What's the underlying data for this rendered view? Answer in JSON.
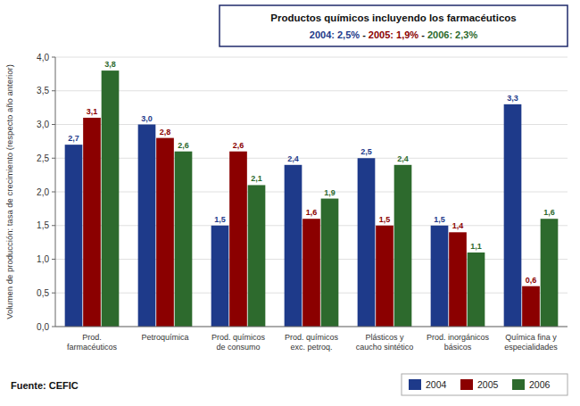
{
  "chart_data": {
    "type": "bar",
    "title": "Productos químicos incluyendo los farmacéuticos",
    "subtitle": [
      {
        "text": "2004: 2,5%",
        "color": "#1e3a8a"
      },
      {
        "text": " - "
      },
      {
        "text": "2005: 1,9%",
        "color": "#8b0000"
      },
      {
        "text": " - "
      },
      {
        "text": "2006: 2,3%",
        "color": "#2d6a2d"
      }
    ],
    "y_label": "Volumen de producción: tasa de crecimiento (respecto año anterior)",
    "annotations": [
      "Fuente: CEFIC"
    ],
    "categories": [
      "Prod.\nfarmacéuticos",
      "Petroquímica",
      "Prod. químicos\nde consumo",
      "Prod. químicos\nexc. petroq.",
      "Plásticos y\ncaucho sintético",
      "Prod. inorgánicos\nbásicos",
      "Química fina y\nespecialidades"
    ],
    "series": [
      {
        "name": "2004",
        "color": "#1e3a8a",
        "values": [
          2.7,
          3.0,
          1.5,
          2.4,
          2.5,
          1.5,
          3.3
        ],
        "value_labels": [
          "2,7",
          "3,0",
          "1,5",
          "2,4",
          "2,5",
          "1,5",
          "3,3"
        ]
      },
      {
        "name": "2005",
        "color": "#8b0000",
        "values": [
          3.1,
          2.8,
          2.6,
          1.6,
          1.5,
          1.4,
          0.6
        ],
        "value_labels": [
          "3,1",
          "2,8",
          "2,6",
          "1,6",
          "1,5",
          "1,4",
          "0,6"
        ]
      },
      {
        "name": "2006",
        "color": "#2d6a2d",
        "values": [
          3.8,
          2.6,
          2.1,
          1.9,
          2.4,
          1.1,
          1.6
        ],
        "value_labels": [
          "3,8",
          "2,6",
          "2,1",
          "1,9",
          "2,4",
          "1,1",
          "1,6"
        ]
      }
    ],
    "ylim": [
      0.0,
      4.0
    ],
    "yticks": [
      {
        "value": 0.0,
        "label": "0,0"
      },
      {
        "value": 0.5,
        "label": "0,5"
      },
      {
        "value": 1.0,
        "label": "1,0"
      },
      {
        "value": 1.5,
        "label": "1,5"
      },
      {
        "value": 2.0,
        "label": "2,0"
      },
      {
        "value": 2.5,
        "label": "2,5"
      },
      {
        "value": 3.0,
        "label": "3,0"
      },
      {
        "value": 3.5,
        "label": "3,5"
      },
      {
        "value": 4.0,
        "label": "4,0"
      }
    ],
    "grid": true,
    "data_labels": true,
    "legend": "bottom"
  }
}
